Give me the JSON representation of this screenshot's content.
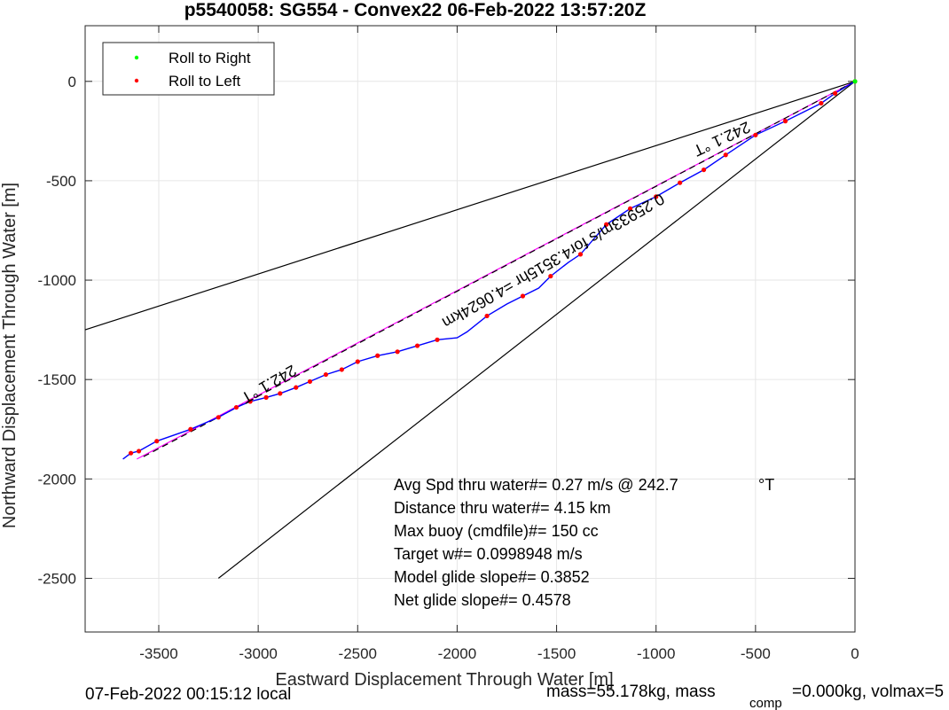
{
  "chart_data": {
    "type": "line",
    "title": "p5540058: SG554 - Convex22 06-Feb-2022 13:57:20Z",
    "xlabel": "Eastward Displacement Through Water [m]",
    "ylabel": "Northward Displacement Through Water [m]",
    "xlim": [
      -3870,
      0
    ],
    "ylim": [
      -2770,
      280
    ],
    "xticks": [
      -3500,
      -3000,
      -2500,
      -2000,
      -1500,
      -1000,
      -500,
      0
    ],
    "yticks": [
      0,
      -500,
      -1000,
      -1500,
      -2000,
      -2500
    ],
    "grid": true,
    "legend_position": "top-left",
    "legend": [
      {
        "name": "Roll to Right",
        "color": "#00ff00"
      },
      {
        "name": "Roll to Left",
        "color": "#ff0000"
      }
    ],
    "series": [
      {
        "name": "Roll to Right",
        "style": "markers",
        "color": "#00ff00",
        "x": [
          0
        ],
        "y": [
          0
        ]
      },
      {
        "name": "Roll to Left",
        "style": "markers",
        "color": "#ff0000",
        "x": [
          0,
          -100,
          -170,
          -350,
          -500,
          -650,
          -760,
          -880,
          -1000,
          -1130,
          -1250,
          -1380,
          -1530,
          -1670,
          -1850,
          -2100,
          -2200,
          -2300,
          -2400,
          -2500,
          -2580,
          -2660,
          -2740,
          -2810,
          -2890,
          -2960,
          -3040,
          -3110,
          -3200,
          -3340,
          -3510,
          -3600,
          -3640
        ],
        "y": [
          0,
          -60,
          -110,
          -200,
          -270,
          -370,
          -445,
          -510,
          -580,
          -640,
          -720,
          -870,
          -980,
          -1080,
          -1180,
          -1300,
          -1330,
          -1360,
          -1380,
          -1410,
          -1450,
          -1475,
          -1510,
          -1540,
          -1570,
          -1590,
          -1610,
          -1640,
          -1690,
          -1750,
          -1810,
          -1860,
          -1870
        ]
      },
      {
        "name": "track",
        "style": "line",
        "color": "#0000ff",
        "x": [
          0,
          -100,
          -170,
          -350,
          -500,
          -650,
          -760,
          -880,
          -1000,
          -1130,
          -1250,
          -1380,
          -1440,
          -1530,
          -1590,
          -1670,
          -1750,
          -1850,
          -1950,
          -2000,
          -2050,
          -2100,
          -2200,
          -2300,
          -2400,
          -2500,
          -2580,
          -2660,
          -2740,
          -2810,
          -2890,
          -2960,
          -3040,
          -3110,
          -3200,
          -3340,
          -3510,
          -3600,
          -3640,
          -3680
        ],
        "y": [
          0,
          -60,
          -110,
          -200,
          -270,
          -370,
          -445,
          -510,
          -580,
          -640,
          -720,
          -870,
          -910,
          -980,
          -1040,
          -1080,
          -1120,
          -1180,
          -1260,
          -1290,
          -1295,
          -1300,
          -1330,
          -1360,
          -1380,
          -1410,
          -1450,
          -1475,
          -1510,
          -1540,
          -1570,
          -1590,
          -1610,
          -1640,
          -1690,
          -1750,
          -1810,
          -1860,
          -1870,
          -1900
        ]
      },
      {
        "name": "dashed-glide",
        "style": "dashed",
        "color": "#000000",
        "x": [
          0,
          -3580
        ],
        "y": [
          0,
          -1890
        ]
      },
      {
        "name": "magenta-glide",
        "style": "line",
        "color": "#ff00ff",
        "x": [
          0,
          -3610
        ],
        "y": [
          0,
          -1900
        ]
      },
      {
        "name": "upper-bound",
        "style": "line",
        "color": "#000000",
        "x": [
          0,
          -3870
        ],
        "y": [
          0,
          -1250
        ]
      },
      {
        "name": "lower-bound",
        "style": "line",
        "color": "#000000",
        "x": [
          0,
          -3200
        ],
        "y": [
          0,
          -2500
        ]
      }
    ],
    "annotations": [
      {
        "text": "242.1 °T",
        "x": -2960,
        "y": -1500,
        "rotation": 150
      },
      {
        "text": "242.1 °T",
        "x": -680,
        "y": -265,
        "rotation": 155
      },
      {
        "text": "0.25933m/s for4.3515hr =4.0624km",
        "x": -1530,
        "y": -880,
        "rotation": 150
      }
    ],
    "stats": [
      {
        "label": "Avg Spd thru water#=  0.27 m/s @ 242.7",
        "unit": "°T"
      },
      {
        "label": "Distance thru water#=  4.15 km"
      },
      {
        "label": "Max buoy (cmdfile)#= 150 cc"
      },
      {
        "label": "Target w#= 0.0998948 m/s"
      },
      {
        "label": "Model glide slope#= 0.3852"
      },
      {
        "label": "Net glide slope#= 0.4578"
      }
    ],
    "footer_left": "07-Feb-2022 00:15:12 local",
    "footer_right_a": "mass=55.178kg, mass",
    "footer_right_sub": "comp",
    "footer_right_b": "=0.000kg, volmax=5"
  }
}
